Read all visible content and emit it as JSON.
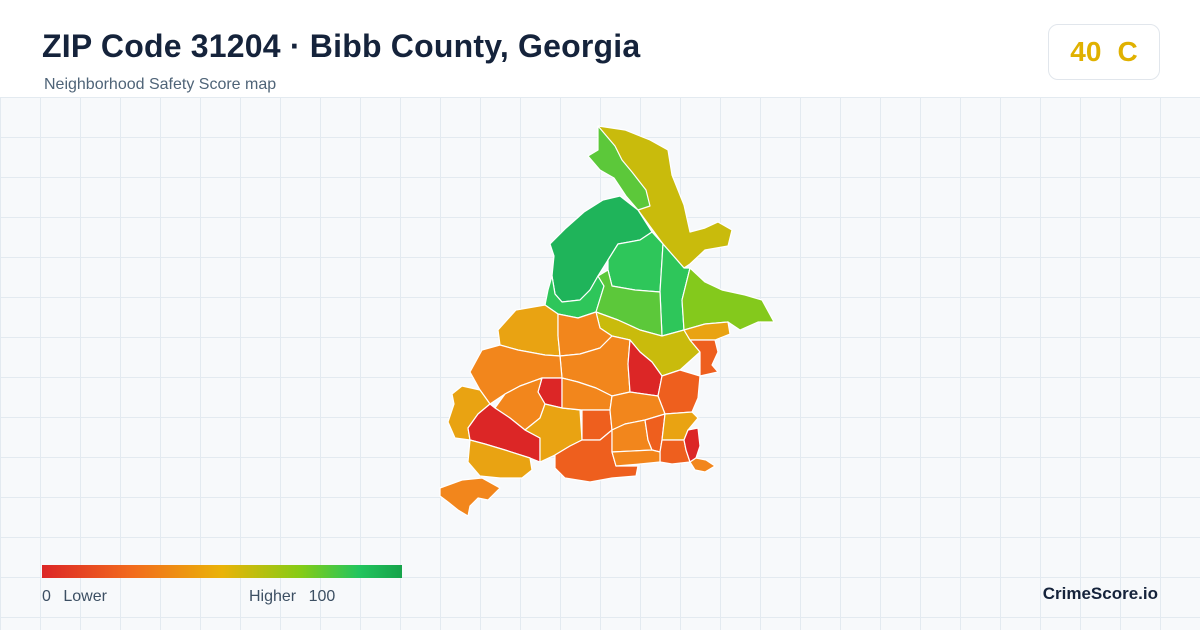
{
  "header": {
    "title": "ZIP Code 31204 · Bibb County, Georgia",
    "subtitle": "Neighborhood Safety Score map"
  },
  "score": {
    "value": "40",
    "grade": "C",
    "color": "#e0b100"
  },
  "legend": {
    "min": "0",
    "min_label": "Lower",
    "max_label": "Higher",
    "max": "100",
    "colors": [
      "#dc2626",
      "#f26b1d",
      "#eab308",
      "#84cc16",
      "#22c55e",
      "#16a34a"
    ]
  },
  "map": {
    "region_colors": {
      "dark_green": "#1fb45a",
      "green": "#2ec65a",
      "light_green": "#5cc83a",
      "lime": "#84c91c",
      "olive_yellow": "#c9bb0c",
      "yellow_orange": "#e9a312",
      "orange": "#f2861c",
      "orange_red": "#ee5f1e",
      "red": "#dc2626"
    }
  },
  "footer": {
    "brand": "CrimeScore.io"
  }
}
